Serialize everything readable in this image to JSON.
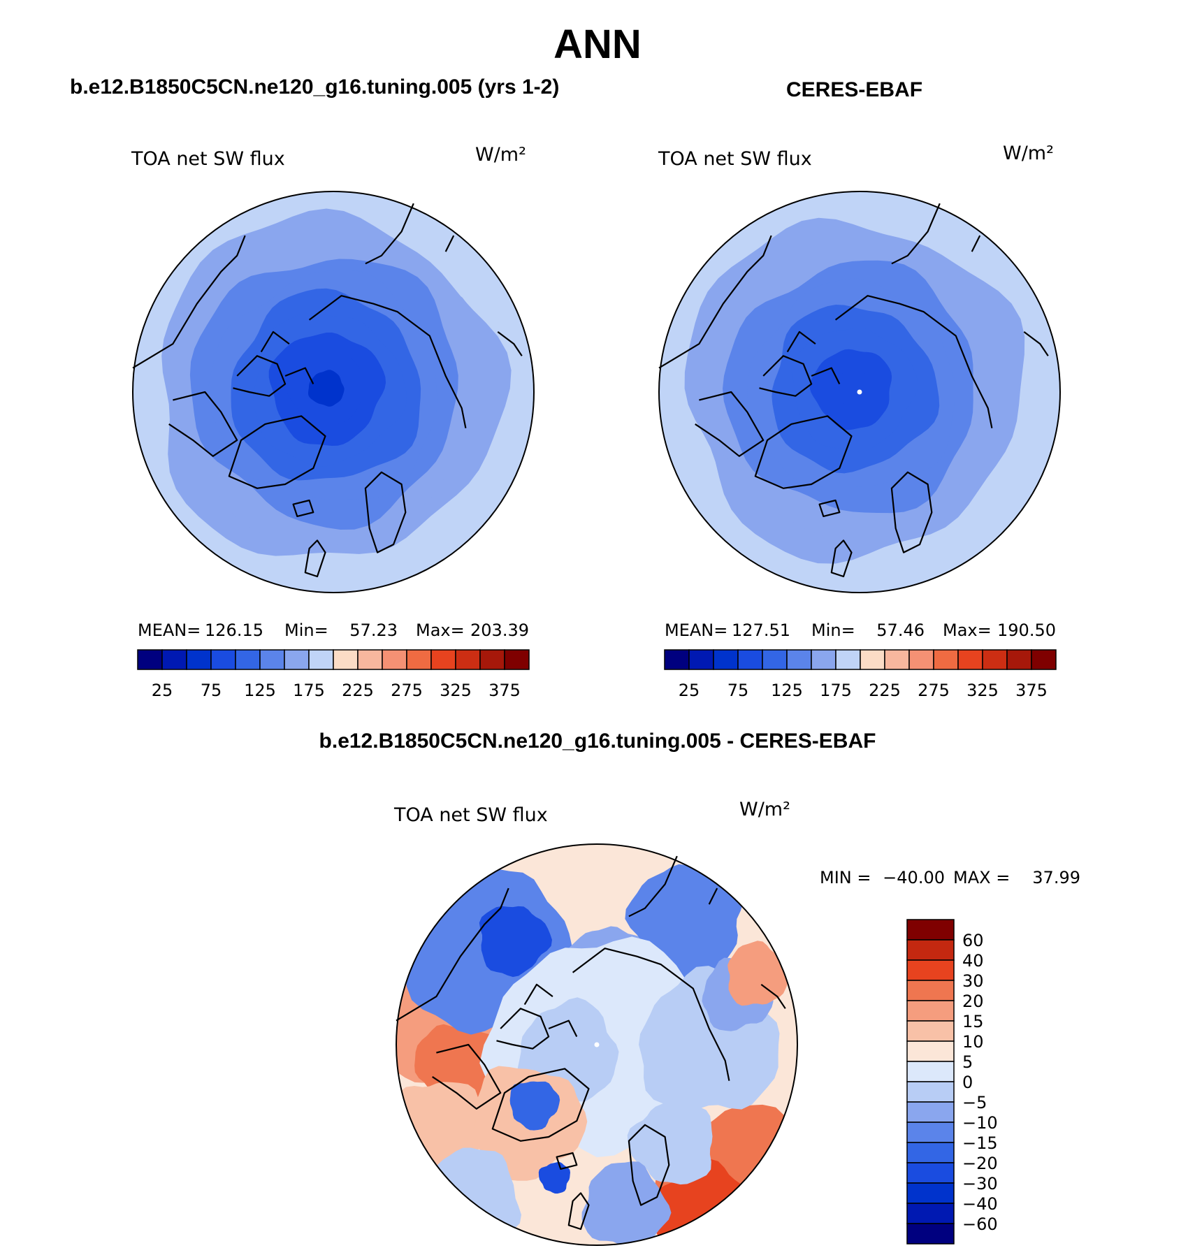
{
  "title": "ANN",
  "subtitles": {
    "model": "b.e12.B1850C5CN.ne120_g16.tuning.005 (yrs 1-2)",
    "obs": "CERES-EBAF",
    "diff": "b.e12.B1850C5CN.ne120_g16.tuning.005 - CERES-EBAF"
  },
  "colors": {
    "seq16": [
      "#00007f",
      "#0019b2",
      "#0033cc",
      "#1a4ce0",
      "#3366e5",
      "#5b84ea",
      "#8aa6ee",
      "#c0d4f7",
      "#fbdcc6",
      "#f8b79e",
      "#f59174",
      "#ef6b42",
      "#e7431f",
      "#cc2e13",
      "#a6180a",
      "#7f0000"
    ],
    "div16": [
      "#00007f",
      "#0019b2",
      "#0033cc",
      "#1a4ce0",
      "#3366e5",
      "#5b84ea",
      "#8aa6ee",
      "#b8cdf5",
      "#dce8fb",
      "#fbe6d8",
      "#f8c1a7",
      "#f59d7e",
      "#ef7650",
      "#e7431f",
      "#c42810",
      "#7f0000"
    ]
  },
  "chart_data": [
    {
      "type": "heatmap",
      "projection": "north-polar-stereographic",
      "panel": "model",
      "left_label": "TOA net SW flux",
      "units": "W/m²",
      "stats": {
        "mean_label": "MEAN=",
        "mean": "126.15",
        "min_label": "Min=",
        "min": "57.23",
        "max_label": "Max=",
        "max": "203.39"
      },
      "colorbar": {
        "orientation": "horizontal",
        "levels": [
          0,
          25,
          50,
          75,
          100,
          125,
          150,
          175,
          200,
          225,
          250,
          275,
          300,
          325,
          350,
          375
        ],
        "tick_labels": [
          "25",
          "75",
          "125",
          "175",
          "225",
          "275",
          "325",
          "375"
        ]
      },
      "field_levels_rings": [
        60,
        75,
        90,
        100,
        110,
        125,
        140,
        155,
        170,
        185
      ]
    },
    {
      "type": "heatmap",
      "projection": "north-polar-stereographic",
      "panel": "obs",
      "left_label": "TOA net SW flux",
      "units": "W/m²",
      "stats": {
        "mean_label": "MEAN=",
        "mean": "127.51",
        "min_label": "Min=",
        "min": "57.46",
        "max_label": "Max=",
        "max": "190.50"
      },
      "colorbar": {
        "orientation": "horizontal",
        "levels": [
          0,
          25,
          50,
          75,
          100,
          125,
          150,
          175,
          200,
          225,
          250,
          275,
          300,
          325,
          350,
          375
        ],
        "tick_labels": [
          "25",
          "75",
          "125",
          "175",
          "225",
          "275",
          "325",
          "375"
        ]
      },
      "field_levels_rings": [
        80,
        95,
        105,
        115,
        128,
        142,
        156,
        170,
        182
      ]
    },
    {
      "type": "heatmap",
      "projection": "north-polar-stereographic",
      "panel": "difference",
      "left_label": "TOA net SW flux",
      "units": "W/m²",
      "stats": {
        "min_label": "MIN =",
        "min": "−40.00",
        "max_label": "MAX =",
        "max": "37.99"
      },
      "colorbar": {
        "orientation": "vertical",
        "levels": [
          60,
          40,
          30,
          20,
          15,
          10,
          5,
          0,
          -5,
          -10,
          -15,
          -20,
          -30,
          -40,
          -60
        ],
        "tick_labels": [
          "60",
          "40",
          "30",
          "20",
          "15",
          "10",
          "5",
          "0",
          "−5",
          "−10",
          "−15",
          "−20",
          "−30",
          "−40",
          "−60"
        ]
      }
    }
  ]
}
